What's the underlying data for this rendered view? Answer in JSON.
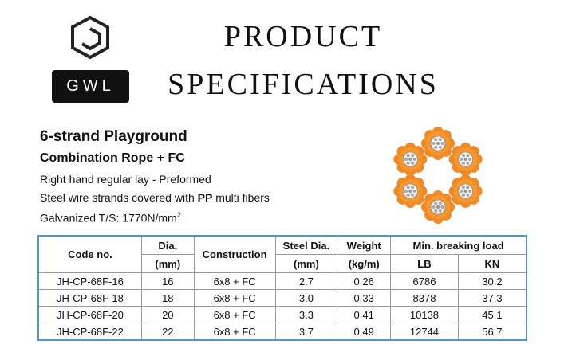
{
  "header": {
    "logo_text": "GWL",
    "title_lines": [
      "PRODUCT",
      "SPECIFICATIONS"
    ]
  },
  "product": {
    "name": "6-strand Playground",
    "subtitle": "Combination Rope + FC",
    "lay": "Right hand regular lay - Preformed",
    "fibers": {
      "before": "Steel wire strands covered with ",
      "bold": "PP",
      "after": " multi fibers"
    },
    "strength": {
      "text": "Galvanized T/S: 1770N/mm",
      "sup": "2"
    }
  },
  "table": {
    "header_top": [
      "Code no.",
      "Dia.",
      "Construction",
      "Steel Dia.",
      "Weight",
      "Min. breaking load"
    ],
    "header_bottom": [
      "(mm)",
      "(mm)",
      "(kg/m)",
      "LB",
      "KN"
    ],
    "rows": [
      [
        "JH-CP-68F-16",
        "16",
        "6x8 + FC",
        "2.7",
        "0.26",
        "6786",
        "30.2"
      ],
      [
        "JH-CP-68F-18",
        "18",
        "6x8 + FC",
        "3.0",
        "0.33",
        "8378",
        "37.3"
      ],
      [
        "JH-CP-68F-20",
        "20",
        "6x8 + FC",
        "3.3",
        "0.41",
        "10138",
        "45.1"
      ],
      [
        "JH-CP-68F-22",
        "22",
        "6x8 + FC",
        "3.7",
        "0.49",
        "12744",
        "56.7"
      ]
    ]
  }
}
